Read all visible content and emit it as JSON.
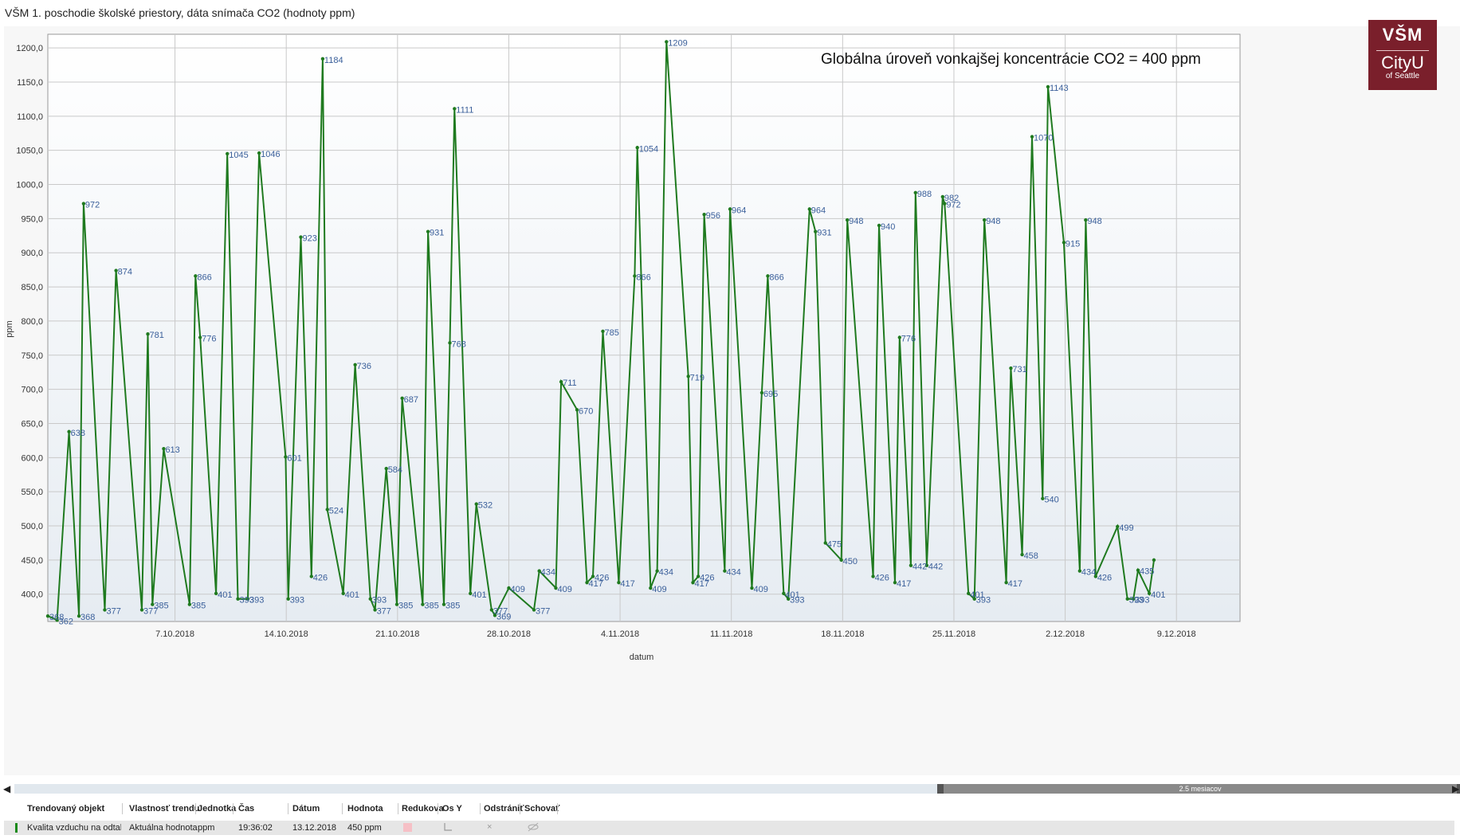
{
  "page": {
    "title": "VŠM 1. poschodie školské priestory, dáta snímača CO2 (hodnoty ppm)"
  },
  "logo": {
    "line1": "VŠM",
    "line2": "CityU",
    "line3": "of Seattle"
  },
  "colors": {
    "series": "#1f7a1f",
    "point_label": "#3a5f9a",
    "logo_bg": "#7a1f2b"
  },
  "chart_data": {
    "type": "line",
    "annotation": "Globálna úroveň vonkajšej koncentrácie CO2 = 400 ppm",
    "xlabel": "datum",
    "ylabel": "ppm",
    "ylim": [
      360,
      1220
    ],
    "xlim": [
      "2018-09-29",
      "2018-12-13"
    ],
    "y_ticks": [
      "1200,0",
      "1150,0",
      "1100,0",
      "1050,0",
      "1000,0",
      "950,0",
      "900,0",
      "850,0",
      "800,0",
      "750,0",
      "700,0",
      "650,0",
      "600,0",
      "550,0",
      "500,0",
      "450,0",
      "400,0"
    ],
    "x_ticks": [
      "7.10.2018",
      "14.10.2018",
      "21.10.2018",
      "28.10.2018",
      "4.11.2018",
      "11.11.2018",
      "18.11.2018",
      "25.11.2018",
      "2.12.2018",
      "9.12.2018"
    ],
    "grid": true,
    "series": [
      {
        "points": [
          {
            "x": "2018-09-29 00:00",
            "y": 368,
            "label": "368"
          },
          {
            "x": "2018-09-29 14:00",
            "y": 362,
            "label": "362"
          },
          {
            "x": "2018-09-30 08:00",
            "y": 638,
            "label": "638"
          },
          {
            "x": "2018-09-30 23:00",
            "y": 368,
            "label": "368"
          },
          {
            "x": "2018-10-01 06:00",
            "y": 972,
            "label": "972"
          },
          {
            "x": "2018-10-02 14:00",
            "y": 377,
            "label": "377"
          },
          {
            "x": "2018-10-03 07:00",
            "y": 874,
            "label": "874"
          },
          {
            "x": "2018-10-04 22:00",
            "y": 377,
            "label": "377"
          },
          {
            "x": "2018-10-05 07:00",
            "y": 781,
            "label": "781"
          },
          {
            "x": "2018-10-05 14:00",
            "y": 385,
            "label": "385"
          },
          {
            "x": "2018-10-06 07:00",
            "y": 613,
            "label": "613"
          },
          {
            "x": "2018-10-07 22:00",
            "y": 385,
            "label": "385"
          },
          {
            "x": "2018-10-08 07:00",
            "y": 866,
            "label": "866"
          },
          {
            "x": "2018-10-08 14:00",
            "y": 776,
            "label": "776"
          },
          {
            "x": "2018-10-09 14:00",
            "y": 401,
            "label": "401"
          },
          {
            "x": "2018-10-10 07:00",
            "y": 1045,
            "label": "1045"
          },
          {
            "x": "2018-10-10 23:00",
            "y": 393,
            "label": "393"
          },
          {
            "x": "2018-10-11 14:00",
            "y": 393,
            "label": "393"
          },
          {
            "x": "2018-10-12 07:00",
            "y": 1046,
            "label": "1046"
          },
          {
            "x": "2018-10-13 23:00",
            "y": 601,
            "label": "601"
          },
          {
            "x": "2018-10-14 03:00",
            "y": 393,
            "label": "393"
          },
          {
            "x": "2018-10-14 22:00",
            "y": 923,
            "label": "923"
          },
          {
            "x": "2018-10-15 14:00",
            "y": 426,
            "label": "426"
          },
          {
            "x": "2018-10-16 07:00",
            "y": 1184,
            "label": "1184"
          },
          {
            "x": "2018-10-16 14:00",
            "y": 524,
            "label": "524"
          },
          {
            "x": "2018-10-17 14:00",
            "y": 401,
            "label": "401"
          },
          {
            "x": "2018-10-18 08:00",
            "y": 736,
            "label": "736"
          },
          {
            "x": "2018-10-19 07:00",
            "y": 393,
            "label": "393"
          },
          {
            "x": "2018-10-19 14:00",
            "y": 377,
            "label": "377"
          },
          {
            "x": "2018-10-20 07:00",
            "y": 584,
            "label": "584"
          },
          {
            "x": "2018-10-20 23:00",
            "y": 385,
            "label": "385"
          },
          {
            "x": "2018-10-21 07:00",
            "y": 687,
            "label": "687"
          },
          {
            "x": "2018-10-22 14:00",
            "y": 385,
            "label": "385"
          },
          {
            "x": "2018-10-22 22:00",
            "y": 931,
            "label": "931"
          },
          {
            "x": "2018-10-23 22:00",
            "y": 385,
            "label": "385"
          },
          {
            "x": "2018-10-24 07:00",
            "y": 768,
            "label": "768"
          },
          {
            "x": "2018-10-24 14:00",
            "y": 1111,
            "label": "1111"
          },
          {
            "x": "2018-10-25 14:00",
            "y": 401,
            "label": "401"
          },
          {
            "x": "2018-10-25 23:00",
            "y": 532,
            "label": "532"
          },
          {
            "x": "2018-10-26 22:00",
            "y": 377,
            "label": "377"
          },
          {
            "x": "2018-10-27 03:00",
            "y": 369,
            "label": "369"
          },
          {
            "x": "2018-10-28 00:00",
            "y": 409,
            "label": "409"
          },
          {
            "x": "2018-10-29 14:00",
            "y": 377,
            "label": "377"
          },
          {
            "x": "2018-10-29 22:00",
            "y": 434,
            "label": "434"
          },
          {
            "x": "2018-10-30 23:00",
            "y": 409,
            "label": "409"
          },
          {
            "x": "2018-10-31 07:00",
            "y": 711,
            "label": "711"
          },
          {
            "x": "2018-11-01 07:00",
            "y": 670,
            "label": "670"
          },
          {
            "x": "2018-11-01 22:00",
            "y": 417,
            "label": "417"
          },
          {
            "x": "2018-11-02 07:00",
            "y": 426,
            "label": "426"
          },
          {
            "x": "2018-11-02 22:00",
            "y": 785,
            "label": "785"
          },
          {
            "x": "2018-11-03 22:00",
            "y": 417,
            "label": "417"
          },
          {
            "x": "2018-11-04 22:00",
            "y": 866,
            "label": "866"
          },
          {
            "x": "2018-11-05 02:00",
            "y": 1054,
            "label": "1054"
          },
          {
            "x": "2018-11-05 22:00",
            "y": 409,
            "label": "409"
          },
          {
            "x": "2018-11-06 08:00",
            "y": 434,
            "label": "434"
          },
          {
            "x": "2018-11-06 22:00",
            "y": 1209,
            "label": "1209"
          },
          {
            "x": "2018-11-08 07:00",
            "y": 719,
            "label": "719"
          },
          {
            "x": "2018-11-08 14:00",
            "y": 417,
            "label": "417"
          },
          {
            "x": "2018-11-08 22:00",
            "y": 426,
            "label": "426"
          },
          {
            "x": "2018-11-09 07:00",
            "y": 956,
            "label": "956"
          },
          {
            "x": "2018-11-10 14:00",
            "y": 434,
            "label": "434"
          },
          {
            "x": "2018-11-10 22:00",
            "y": 964,
            "label": "964"
          },
          {
            "x": "2018-11-12 07:00",
            "y": 409,
            "label": "409"
          },
          {
            "x": "2018-11-12 22:00",
            "y": 695,
            "label": "695"
          },
          {
            "x": "2018-11-13 07:00",
            "y": 866,
            "label": "866"
          },
          {
            "x": "2018-11-14 07:00",
            "y": 401,
            "label": "401"
          },
          {
            "x": "2018-11-14 14:00",
            "y": 393,
            "label": "393"
          },
          {
            "x": "2018-11-15 22:00",
            "y": 964,
            "label": "964"
          },
          {
            "x": "2018-11-16 07:00",
            "y": 931,
            "label": "931"
          },
          {
            "x": "2018-11-16 22:00",
            "y": 475,
            "label": "475"
          },
          {
            "x": "2018-11-17 22:00",
            "y": 450,
            "label": "450"
          },
          {
            "x": "2018-11-18 07:00",
            "y": 948,
            "label": "948"
          },
          {
            "x": "2018-11-19 22:00",
            "y": 426,
            "label": "426"
          },
          {
            "x": "2018-11-20 07:00",
            "y": 940,
            "label": "940"
          },
          {
            "x": "2018-11-21 07:00",
            "y": 417,
            "label": "417"
          },
          {
            "x": "2018-11-21 14:00",
            "y": 776,
            "label": "776"
          },
          {
            "x": "2018-11-22 07:00",
            "y": 442,
            "label": "442"
          },
          {
            "x": "2018-11-22 14:00",
            "y": 988,
            "label": "988"
          },
          {
            "x": "2018-11-23 07:00",
            "y": 442,
            "label": "442"
          },
          {
            "x": "2018-11-24 07:00",
            "y": 982,
            "label": "982"
          },
          {
            "x": "2018-11-24 10:00",
            "y": 972,
            "label": "972"
          },
          {
            "x": "2018-11-25 22:00",
            "y": 401,
            "label": "401"
          },
          {
            "x": "2018-11-26 07:00",
            "y": 393,
            "label": "393"
          },
          {
            "x": "2018-11-26 22:00",
            "y": 948,
            "label": "948"
          },
          {
            "x": "2018-11-28 07:00",
            "y": 417,
            "label": "417"
          },
          {
            "x": "2018-11-28 14:00",
            "y": 731,
            "label": "731"
          },
          {
            "x": "2018-11-29 07:00",
            "y": 458,
            "label": "458"
          },
          {
            "x": "2018-11-29 22:00",
            "y": 1070,
            "label": "1070"
          },
          {
            "x": "2018-11-30 14:00",
            "y": 540,
            "label": "540"
          },
          {
            "x": "2018-11-30 22:00",
            "y": 1143,
            "label": "1143"
          },
          {
            "x": "2018-12-01 22:00",
            "y": 915,
            "label": "915"
          },
          {
            "x": "2018-12-02 22:00",
            "y": 434,
            "label": "434"
          },
          {
            "x": "2018-12-03 07:00",
            "y": 948,
            "label": "948"
          },
          {
            "x": "2018-12-03 22:00",
            "y": 426,
            "label": "426"
          },
          {
            "x": "2018-12-05 07:00",
            "y": 499,
            "label": "499"
          },
          {
            "x": "2018-12-05 22:00",
            "y": 393,
            "label": "393"
          },
          {
            "x": "2018-12-06 07:00",
            "y": 393,
            "label": "393"
          },
          {
            "x": "2018-12-06 14:00",
            "y": 435,
            "label": "435"
          },
          {
            "x": "2018-12-07 07:00",
            "y": 401,
            "label": "401"
          },
          {
            "x": "2018-12-07 14:00",
            "y": 450,
            "label": ""
          }
        ]
      }
    ]
  },
  "scrollbar": {
    "span_label": "2.5 mesiacov",
    "left_arrow": "◀",
    "right_arrow": "▶"
  },
  "table": {
    "headers": [
      "Trendovaný objekt",
      "Vlastnosť trendu",
      "Jednotka",
      "Čas",
      "Dátum",
      "Hodnota",
      "Redukova",
      "Os Y",
      "Odstrániť",
      "Schovať"
    ],
    "row": {
      "object": "Kvalita vzduchu na odtahu [A",
      "property": "Aktuálna hodnota",
      "unit": "ppm",
      "time": "19:36:02",
      "date": "13.12.2018",
      "value": "450 ppm",
      "remove": "×",
      "axis_icon": "axis-y-icon",
      "hide_icon": "eye-slash-icon"
    }
  }
}
